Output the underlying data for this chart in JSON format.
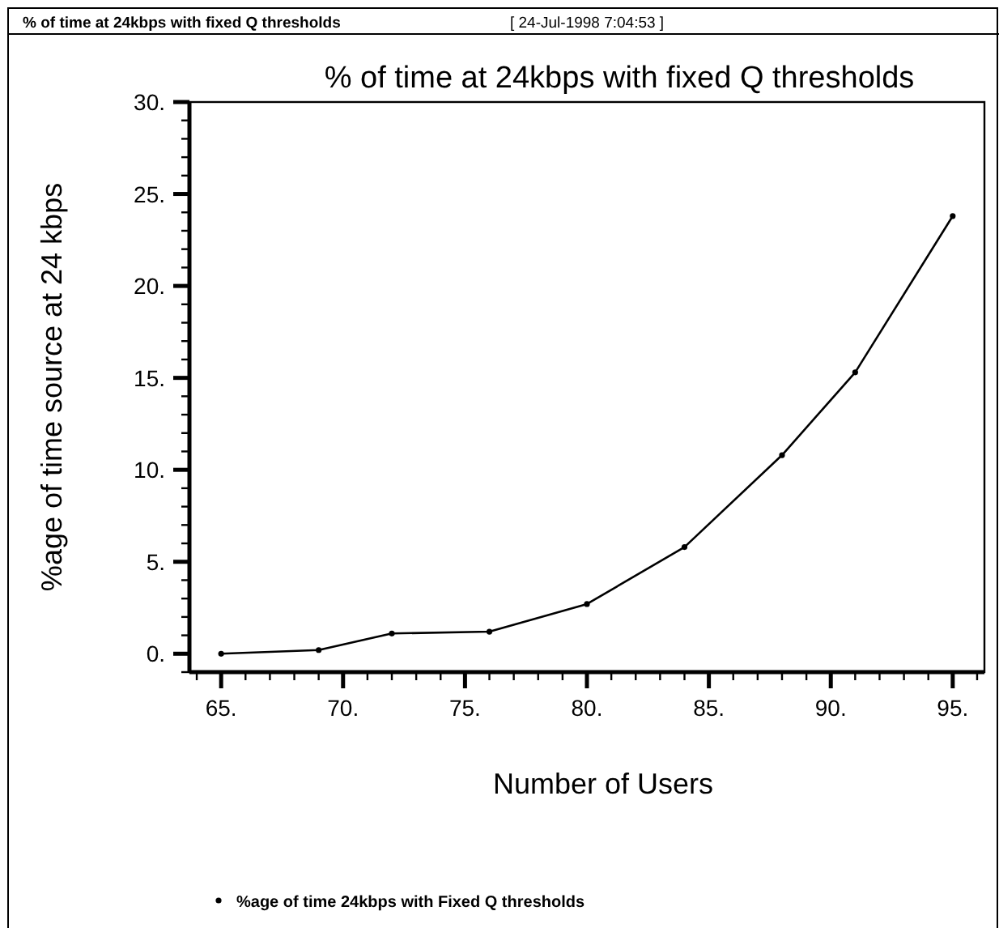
{
  "chart_data": {
    "type": "line",
    "title": "% of time at 24kbps with fixed Q thresholds",
    "xlabel": "Number of Users",
    "ylabel": "%age of time source at 24 kbps",
    "annotations": [
      "% of time at 24kbps with fixed Q thresholds",
      "[ 24-Jul-1998 7:04:53 ]"
    ],
    "x": [
      65,
      69,
      72,
      76,
      80,
      84,
      88,
      91,
      95
    ],
    "series": [
      {
        "name": "%age of time 24kbps with Fixed Q thresholds",
        "color": "#000000",
        "values": [
          0.0,
          0.2,
          1.1,
          1.2,
          2.7,
          5.8,
          10.8,
          15.3,
          23.8
        ]
      }
    ],
    "xlim": [
      63.7,
      96.3
    ],
    "ylim": [
      -1,
      30
    ],
    "xticks": [
      {
        "value": 64,
        "label": null
      },
      {
        "value": 65,
        "label": "65."
      },
      {
        "value": 66,
        "label": null
      },
      {
        "value": 67,
        "label": null
      },
      {
        "value": 68,
        "label": null
      },
      {
        "value": 69,
        "label": null
      },
      {
        "value": 70,
        "label": "70."
      },
      {
        "value": 71,
        "label": null
      },
      {
        "value": 72,
        "label": null
      },
      {
        "value": 73,
        "label": null
      },
      {
        "value": 74,
        "label": null
      },
      {
        "value": 75,
        "label": "75."
      },
      {
        "value": 76,
        "label": null
      },
      {
        "value": 77,
        "label": null
      },
      {
        "value": 78,
        "label": null
      },
      {
        "value": 79,
        "label": null
      },
      {
        "value": 80,
        "label": "80."
      },
      {
        "value": 81,
        "label": null
      },
      {
        "value": 82,
        "label": null
      },
      {
        "value": 83,
        "label": null
      },
      {
        "value": 84,
        "label": null
      },
      {
        "value": 85,
        "label": "85."
      },
      {
        "value": 86,
        "label": null
      },
      {
        "value": 87,
        "label": null
      },
      {
        "value": 88,
        "label": null
      },
      {
        "value": 89,
        "label": null
      },
      {
        "value": 90,
        "label": "90."
      },
      {
        "value": 91,
        "label": null
      },
      {
        "value": 92,
        "label": null
      },
      {
        "value": 93,
        "label": null
      },
      {
        "value": 94,
        "label": null
      },
      {
        "value": 95,
        "label": "95."
      },
      {
        "value": 96,
        "label": null
      }
    ],
    "yticks": [
      {
        "value": -1,
        "label": null
      },
      {
        "value": 0,
        "label": "0."
      },
      {
        "value": 1,
        "label": null
      },
      {
        "value": 2,
        "label": null
      },
      {
        "value": 3,
        "label": null
      },
      {
        "value": 4,
        "label": null
      },
      {
        "value": 5,
        "label": "5."
      },
      {
        "value": 6,
        "label": null
      },
      {
        "value": 7,
        "label": null
      },
      {
        "value": 8,
        "label": null
      },
      {
        "value": 9,
        "label": null
      },
      {
        "value": 10,
        "label": "10."
      },
      {
        "value": 11,
        "label": null
      },
      {
        "value": 12,
        "label": null
      },
      {
        "value": 13,
        "label": null
      },
      {
        "value": 14,
        "label": null
      },
      {
        "value": 15,
        "label": "15."
      },
      {
        "value": 16,
        "label": null
      },
      {
        "value": 17,
        "label": null
      },
      {
        "value": 18,
        "label": null
      },
      {
        "value": 19,
        "label": null
      },
      {
        "value": 20,
        "label": "20."
      },
      {
        "value": 21,
        "label": null
      },
      {
        "value": 22,
        "label": null
      },
      {
        "value": 23,
        "label": null
      },
      {
        "value": 24,
        "label": null
      },
      {
        "value": 25,
        "label": "25."
      },
      {
        "value": 26,
        "label": null
      },
      {
        "value": 27,
        "label": null
      },
      {
        "value": 28,
        "label": null
      },
      {
        "value": 29,
        "label": null
      },
      {
        "value": 30,
        "label": "30."
      }
    ],
    "marker": "circle",
    "line_style": "solid",
    "legend": "bottom",
    "grid": false
  }
}
